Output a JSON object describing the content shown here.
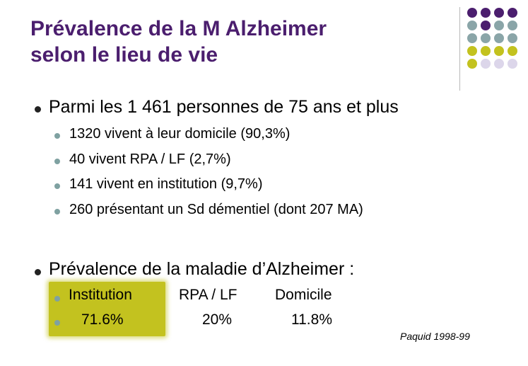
{
  "title": {
    "line1": "Prévalence de la M Alzheimer",
    "line2": "selon le lieu de vie"
  },
  "decoration": {
    "colors": {
      "purple": "#4b1e6e",
      "teal": "#8aa5a8",
      "olive": "#c3c21f",
      "lavender": "#dcd6ea"
    }
  },
  "bullets": {
    "main1": "Parmi les 1 461 personnes de 75 ans et plus",
    "sub": [
      "1320 vivent à leur domicile (90,3%)",
      "40 vivent RPA / LF (2,7%)",
      "141 vivent en institution (9,7%)",
      "260 présentant un Sd démentiel (dont 207 MA)"
    ],
    "main2": "Prévalence de la maladie d’Alzheimer :"
  },
  "table": {
    "headers": [
      "Institution",
      "RPA / LF",
      "Domicile"
    ],
    "values": [
      "71.6%",
      "20%",
      "11.8%"
    ],
    "highlight_color": "#c3c21f"
  },
  "source": "Paquid 1998-99"
}
